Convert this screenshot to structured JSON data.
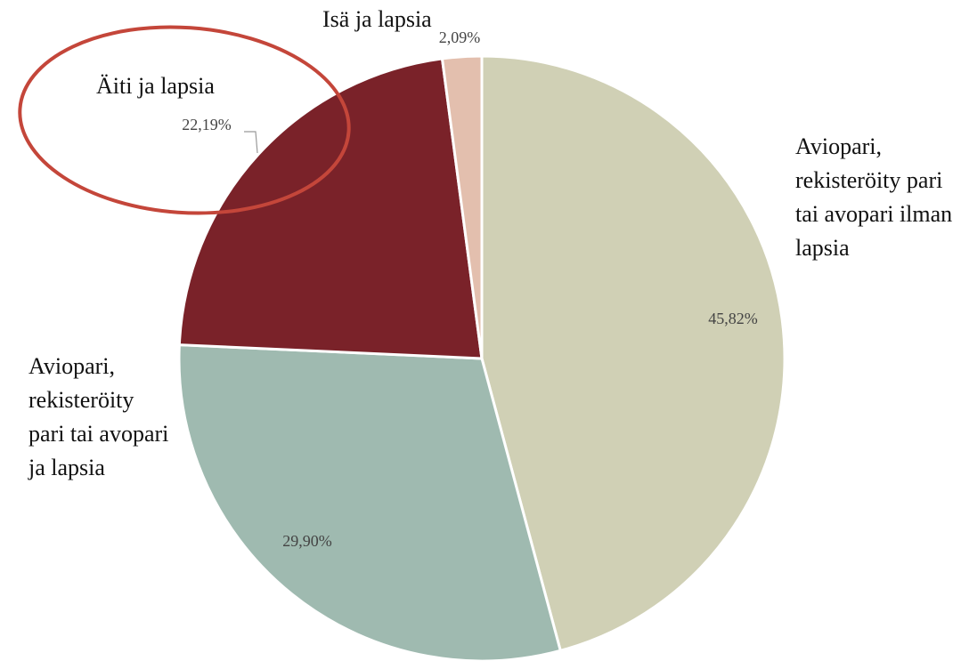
{
  "chart_data": {
    "type": "pie",
    "categories": [
      "Aviopari, rekisteröity pari tai avopari ilman lapsia",
      "Aviopari, rekisteröity pari tai avopari ja lapsia",
      "Äiti ja lapsia",
      "Isä ja lapsia"
    ],
    "values": [
      45.82,
      29.9,
      22.19,
      2.09
    ],
    "value_labels": [
      "45,82%",
      "29,90%",
      "22,19%",
      "2,09%"
    ],
    "colors": [
      "#d0d0b5",
      "#9fbab0",
      "#7a2229",
      "#e3bfae"
    ]
  }
}
